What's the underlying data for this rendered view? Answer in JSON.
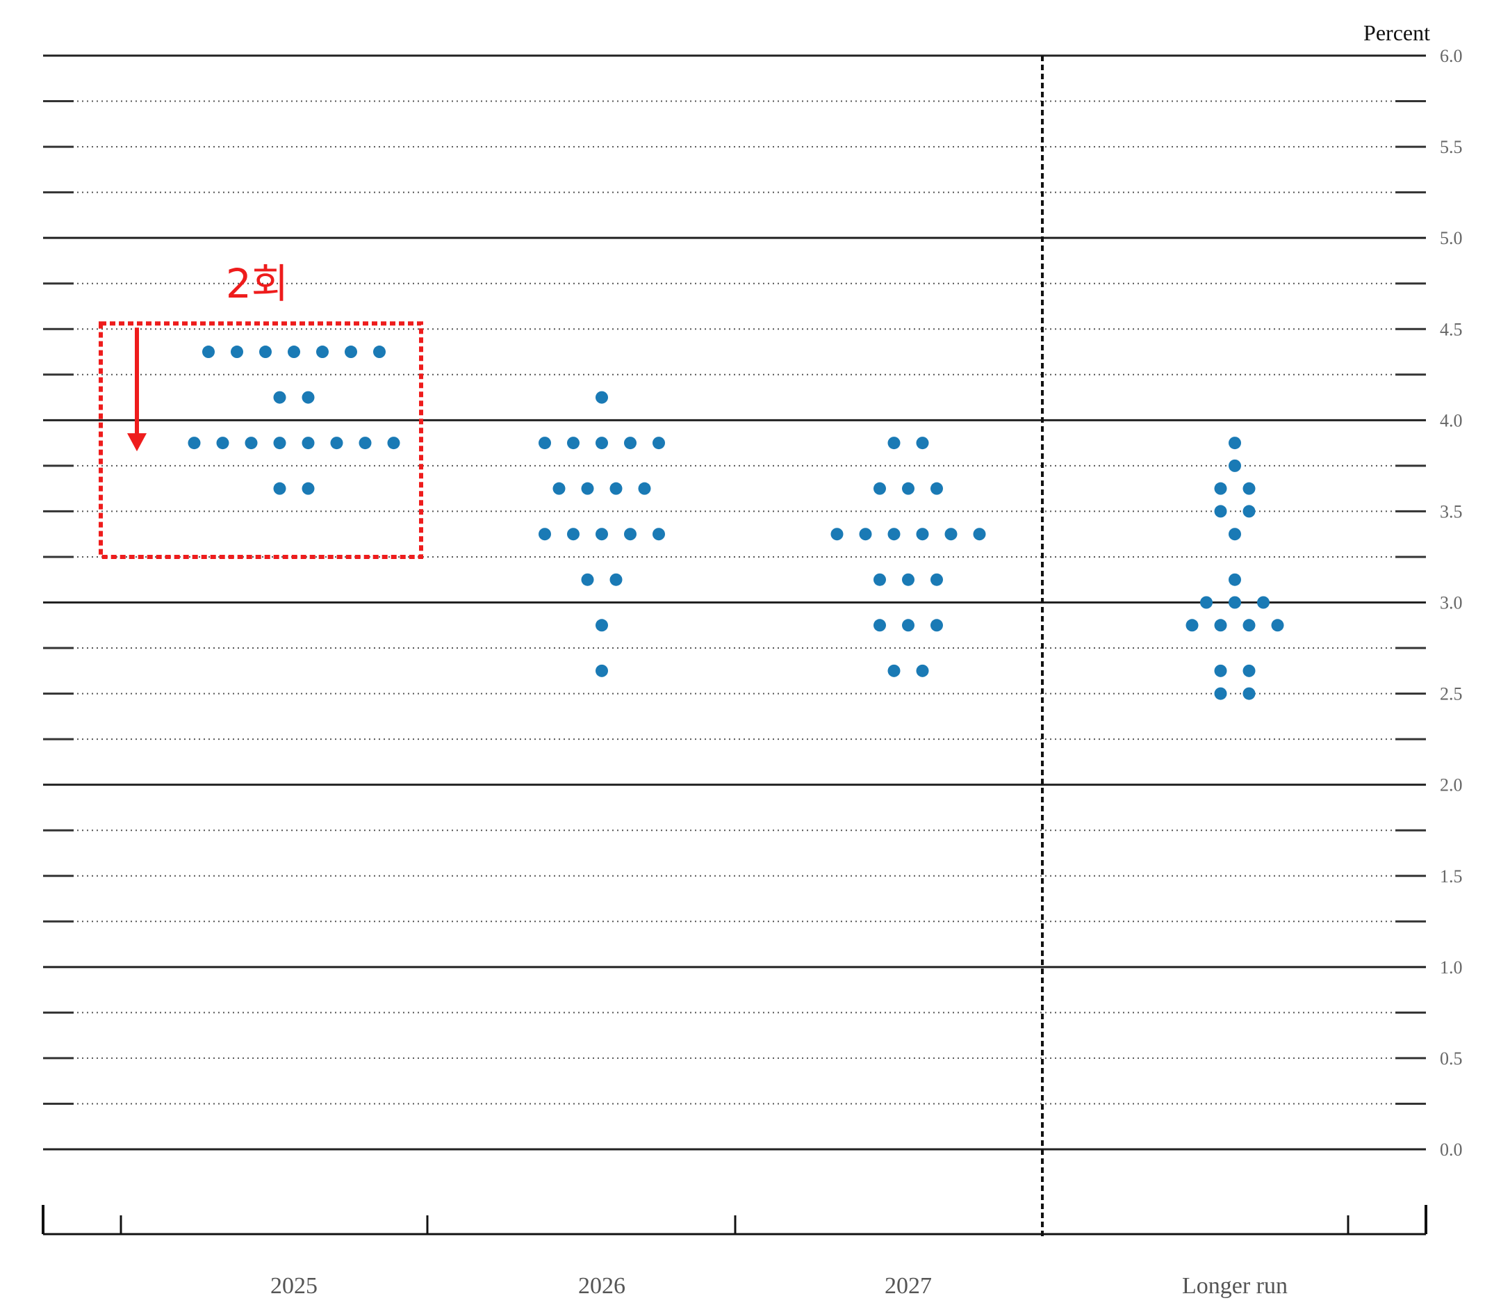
{
  "chart_data": {
    "type": "scatter",
    "ylabel": "Percent",
    "ylim": [
      0,
      6
    ],
    "yticks": [
      "0.0",
      "0.5",
      "1.0",
      "1.5",
      "2.0",
      "2.5",
      "3.0",
      "3.5",
      "4.0",
      "4.5",
      "5.0",
      "5.5",
      "6.0"
    ],
    "categories": [
      "2025",
      "2026",
      "2027",
      "Longer run"
    ],
    "dot_color": "#1a7ab5",
    "series": [
      {
        "category": "2025",
        "points": [
          {
            "y": 4.375,
            "count": 7
          },
          {
            "y": 4.125,
            "count": 2
          },
          {
            "y": 3.875,
            "count": 8
          },
          {
            "y": 3.625,
            "count": 2
          }
        ]
      },
      {
        "category": "2026",
        "points": [
          {
            "y": 4.125,
            "count": 1
          },
          {
            "y": 3.875,
            "count": 5
          },
          {
            "y": 3.625,
            "count": 4
          },
          {
            "y": 3.375,
            "count": 5
          },
          {
            "y": 3.125,
            "count": 2
          },
          {
            "y": 2.875,
            "count": 1
          },
          {
            "y": 2.625,
            "count": 1
          }
        ]
      },
      {
        "category": "2027",
        "points": [
          {
            "y": 3.875,
            "count": 2
          },
          {
            "y": 3.625,
            "count": 3
          },
          {
            "y": 3.375,
            "count": 6
          },
          {
            "y": 3.125,
            "count": 3
          },
          {
            "y": 2.875,
            "count": 3
          },
          {
            "y": 2.625,
            "count": 2
          }
        ]
      },
      {
        "category": "Longer run",
        "points": [
          {
            "y": 3.875,
            "count": 1
          },
          {
            "y": 3.75,
            "count": 1
          },
          {
            "y": 3.625,
            "count": 2
          },
          {
            "y": 3.5,
            "count": 2
          },
          {
            "y": 3.375,
            "count": 1
          },
          {
            "y": 3.125,
            "count": 1
          },
          {
            "y": 3.0,
            "count": 3
          },
          {
            "y": 2.875,
            "count": 4
          },
          {
            "y": 2.625,
            "count": 2
          },
          {
            "y": 2.5,
            "count": 2
          }
        ]
      }
    ],
    "annotation": {
      "text": "2회",
      "color": "#ee1c1c",
      "category": "2025",
      "arrow_from": 4.5,
      "arrow_to": 3.875
    }
  }
}
